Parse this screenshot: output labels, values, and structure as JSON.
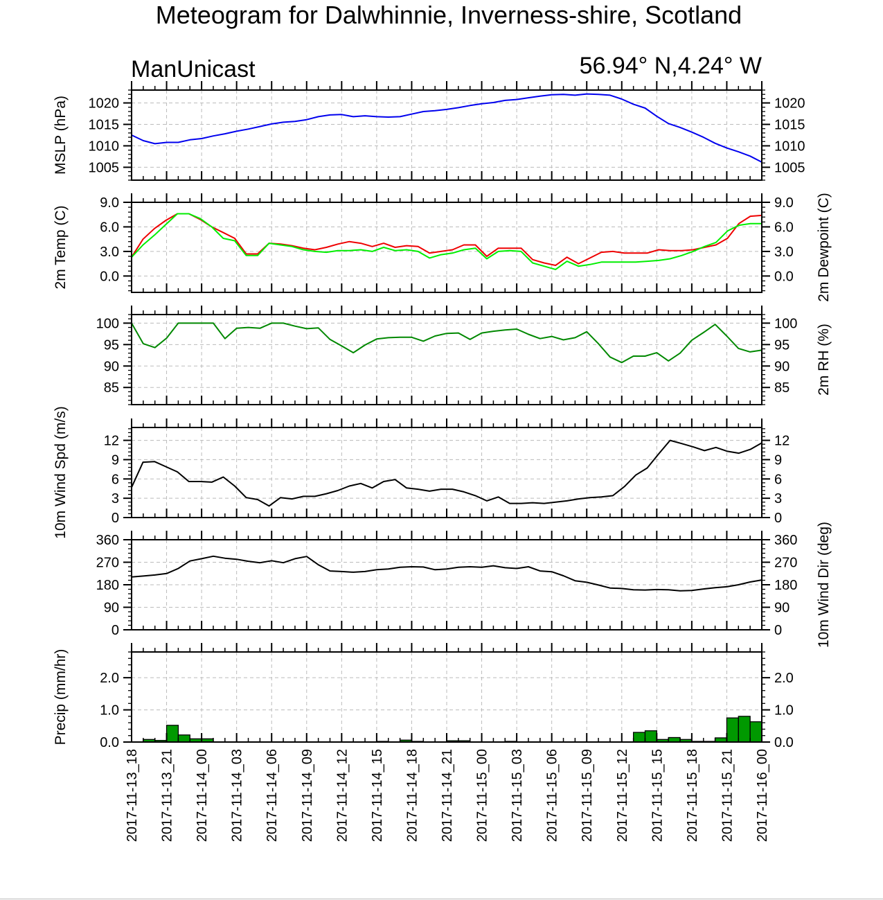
{
  "title": "Meteogram for Dalwhinnie, Inverness-shire, Scotland",
  "model": "ManUnicast",
  "location": "56.94° N,4.24° W",
  "colors": {
    "mslp": "#0000ee",
    "temp": "#ee0000",
    "dewpoint": "#00ee00",
    "rh": "#008800",
    "wind": "#000000",
    "precip": "#009900",
    "grid": "#bbbbbb"
  },
  "time_labels": [
    "2017-11-13_18",
    "2017-11-13_21",
    "2017-11-14_00",
    "2017-11-14_03",
    "2017-11-14_06",
    "2017-11-14_09",
    "2017-11-14_12",
    "2017-11-14_15",
    "2017-11-14_18",
    "2017-11-14_21",
    "2017-11-15_00",
    "2017-11-15_03",
    "2017-11-15_06",
    "2017-11-15_09",
    "2017-11-15_12",
    "2017-11-15_15",
    "2017-11-15_18",
    "2017-11-15_21",
    "2017-11-16_00"
  ],
  "chart_data": [
    {
      "type": "line",
      "name": "mslp",
      "ylabel": "MSLP (hPa)",
      "ylabel_right": "",
      "ylim": [
        1002,
        1023
      ],
      "ticks": [
        1005,
        1010,
        1015,
        1020
      ],
      "tick_labels": [
        "1005",
        "1010",
        "1015",
        "1020"
      ],
      "grid": true,
      "series": [
        {
          "color": "#0000ee",
          "values": [
            1012.5,
            1011.2,
            1010.5,
            1010.8,
            1010.8,
            1011.4,
            1011.7,
            1012.3,
            1012.8,
            1013.4,
            1013.9,
            1014.5,
            1015.1,
            1015.5,
            1015.7,
            1016.1,
            1016.8,
            1017.2,
            1017.3,
            1016.8,
            1017.0,
            1016.8,
            1016.7,
            1016.8,
            1017.4,
            1018.0,
            1018.2,
            1018.5,
            1018.9,
            1019.4,
            1019.8,
            1020.1,
            1020.6,
            1020.8,
            1021.2,
            1021.6,
            1021.9,
            1022.0,
            1021.8,
            1022.1,
            1022.0,
            1021.8,
            1020.9,
            1019.7,
            1018.8,
            1016.9,
            1015.2,
            1014.3,
            1013.2,
            1012.0,
            1010.6,
            1009.5,
            1008.6,
            1007.6,
            1006.2
          ]
        }
      ]
    },
    {
      "type": "line",
      "name": "temp",
      "ylabel": "2m Temp (C)",
      "ylabel_right": "2m Dewpoint (C)",
      "ylim": [
        -2,
        9
      ],
      "ticks": [
        0,
        3,
        6,
        9
      ],
      "tick_labels": [
        "0.0",
        "3.0",
        "6.0",
        "9.0"
      ],
      "grid": true,
      "series": [
        {
          "color": "#ee0000",
          "values": [
            2.3,
            4.5,
            5.8,
            6.8,
            7.6,
            7.6,
            6.9,
            6.0,
            5.3,
            4.6,
            2.7,
            2.7,
            4.0,
            3.9,
            3.7,
            3.4,
            3.2,
            3.5,
            3.9,
            4.2,
            4.0,
            3.6,
            4.0,
            3.5,
            3.7,
            3.6,
            2.8,
            3.0,
            3.2,
            3.8,
            3.8,
            2.4,
            3.4,
            3.4,
            3.4,
            2.0,
            1.6,
            1.3,
            2.3,
            1.5,
            2.2,
            2.9,
            3.0,
            2.8,
            2.8,
            2.8,
            3.2,
            3.1,
            3.1,
            3.2,
            3.5,
            3.8,
            4.6,
            6.4,
            7.3,
            7.4
          ]
        },
        {
          "color": "#00ee00",
          "values": [
            2.3,
            3.8,
            5.0,
            6.3,
            7.6,
            7.6,
            7.0,
            6.0,
            4.6,
            4.3,
            2.5,
            2.5,
            4.0,
            3.8,
            3.6,
            3.2,
            3.0,
            2.9,
            3.1,
            3.1,
            3.2,
            3.0,
            3.5,
            3.1,
            3.2,
            3.0,
            2.2,
            2.6,
            2.8,
            3.2,
            3.4,
            2.1,
            3.0,
            3.1,
            3.0,
            1.6,
            1.2,
            0.8,
            1.8,
            1.2,
            1.4,
            1.7,
            1.7,
            1.7,
            1.7,
            1.8,
            1.9,
            2.1,
            2.5,
            3.0,
            3.6,
            4.1,
            5.5,
            6.2,
            6.4,
            6.4
          ]
        }
      ]
    },
    {
      "type": "line",
      "name": "rh",
      "ylabel": "",
      "ylabel_right": "2m RH (%)",
      "ylim": [
        81,
        102
      ],
      "ticks": [
        85,
        90,
        95,
        100
      ],
      "tick_labels": [
        "85",
        "90",
        "95",
        "100"
      ],
      "grid": true,
      "series": [
        {
          "color": "#008800",
          "values": [
            100,
            95.2,
            94.3,
            96.5,
            100,
            100,
            100,
            100,
            96.4,
            98.8,
            99.0,
            98.8,
            100,
            100,
            99.3,
            98.7,
            98.9,
            96.2,
            94.7,
            93.1,
            94.9,
            96.3,
            96.6,
            96.7,
            96.7,
            95.8,
            97.0,
            97.6,
            97.7,
            96.2,
            97.7,
            98.1,
            98.4,
            98.6,
            97.4,
            96.4,
            96.9,
            96.1,
            96.6,
            98.0,
            95.2,
            92.1,
            90.8,
            92.3,
            92.3,
            93.1,
            91.2,
            93.0,
            96.0,
            97.8,
            99.7,
            97.0,
            94.1,
            93.3,
            93.7
          ]
        }
      ]
    },
    {
      "type": "line",
      "name": "wind_speed",
      "ylabel": "10m Wind Spd (m/s)",
      "ylabel_right": "",
      "ylim": [
        0,
        14
      ],
      "ticks": [
        0,
        3,
        6,
        9,
        12
      ],
      "tick_labels": [
        "0",
        "3",
        "6",
        "9",
        "12"
      ],
      "grid": true,
      "series": [
        {
          "color": "#000000",
          "values": [
            4.7,
            8.6,
            8.7,
            7.9,
            7.1,
            5.6,
            5.6,
            5.5,
            6.3,
            4.9,
            3.1,
            2.8,
            1.8,
            3.1,
            2.9,
            3.3,
            3.3,
            3.7,
            4.2,
            4.9,
            5.3,
            4.6,
            5.6,
            5.9,
            4.6,
            4.4,
            4.1,
            4.4,
            4.4,
            4.0,
            3.4,
            2.6,
            3.2,
            2.2,
            2.2,
            2.3,
            2.2,
            2.4,
            2.6,
            2.9,
            3.1,
            3.2,
            3.4,
            4.8,
            6.6,
            7.7,
            9.9,
            12.0,
            11.5,
            11.0,
            10.4,
            10.9,
            10.3,
            10.0,
            10.6,
            11.6
          ]
        }
      ]
    },
    {
      "type": "line",
      "name": "wind_direction",
      "ylabel": "",
      "ylabel_right": "10m Wind Dir (deg)",
      "ylim": [
        0,
        360
      ],
      "ticks": [
        0,
        90,
        180,
        270,
        360
      ],
      "tick_labels": [
        "0",
        "90",
        "180",
        "270",
        "360"
      ],
      "grid": true,
      "series": [
        {
          "color": "#000000",
          "values": [
            211,
            215,
            219,
            225,
            245,
            275,
            284,
            294,
            286,
            282,
            274,
            268,
            276,
            268,
            284,
            293,
            260,
            235,
            233,
            230,
            233,
            240,
            243,
            250,
            252,
            251,
            240,
            243,
            250,
            252,
            250,
            256,
            248,
            245,
            252,
            235,
            232,
            216,
            196,
            190,
            179,
            167,
            165,
            160,
            159,
            161,
            160,
            156,
            157,
            163,
            168,
            172,
            180,
            191,
            199
          ]
        }
      ]
    },
    {
      "type": "bar",
      "name": "precip",
      "ylabel": "Precip (mm/hr)",
      "ylabel_right": "",
      "ylim": [
        0,
        2.8
      ],
      "ticks": [
        0,
        1,
        2
      ],
      "tick_labels": [
        "0.0",
        "1.0",
        "2.0"
      ],
      "grid": true,
      "series": [
        {
          "color": "#009900",
          "values": [
            0,
            0.08,
            0.05,
            0.52,
            0.22,
            0.1,
            0.1,
            0,
            0,
            0,
            0,
            0,
            0,
            0,
            0,
            0,
            0,
            0,
            0,
            0,
            0,
            0.02,
            0,
            0.06,
            0.02,
            0,
            0,
            0.04,
            0.04,
            0,
            0,
            0,
            0.02,
            0,
            0,
            0,
            0,
            0,
            0,
            0,
            0,
            0,
            0,
            0.3,
            0.35,
            0.08,
            0.14,
            0.08,
            0.02,
            0.02,
            0.13,
            0.75,
            0.8,
            0.63
          ]
        }
      ]
    }
  ]
}
